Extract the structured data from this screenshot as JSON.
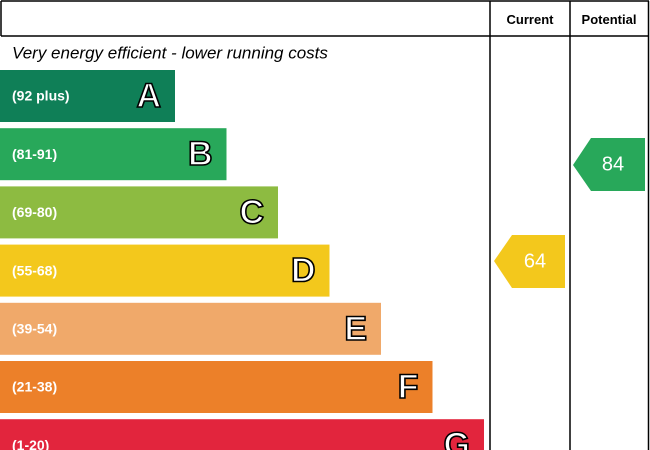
{
  "header": {
    "current": "Current",
    "potential": "Potential"
  },
  "caption": "Very energy efficient - lower running costs",
  "bands": [
    {
      "range": "(92 plus)",
      "letter": "A",
      "color": "#0f7f57"
    },
    {
      "range": "(81-91)",
      "letter": "B",
      "color": "#28a85a"
    },
    {
      "range": "(69-80)",
      "letter": "C",
      "color": "#8dbb41"
    },
    {
      "range": "(55-68)",
      "letter": "D",
      "color": "#f3c81c"
    },
    {
      "range": "(39-54)",
      "letter": "E",
      "color": "#f0a96a"
    },
    {
      "range": "(21-38)",
      "letter": "F",
      "color": "#ec8029"
    },
    {
      "range": "(1-20)",
      "letter": "G",
      "color": "#e2253d"
    }
  ],
  "current": {
    "value": 64,
    "color": "#f3c81c"
  },
  "potential": {
    "value": 84,
    "color": "#28a85a"
  }
}
